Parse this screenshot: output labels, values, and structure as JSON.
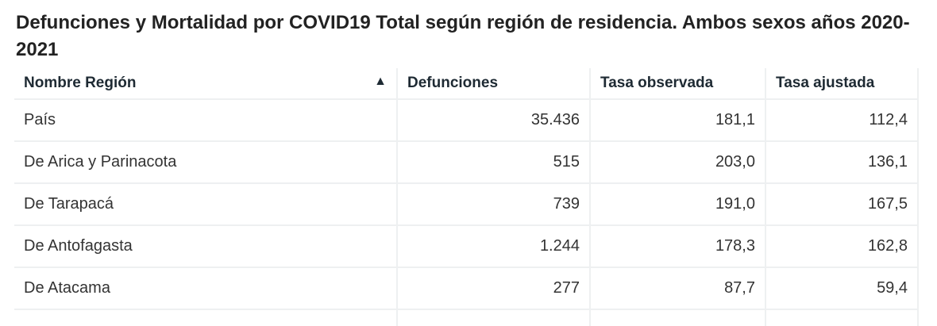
{
  "title": "Defunciones y Mortalidad por COVID19 Total según región de residencia. Ambos sexos años 2020-2021",
  "table": {
    "columns": [
      "Nombre Región",
      "Defunciones",
      "Tasa observada",
      "Tasa ajustada"
    ],
    "sort": {
      "column": "Nombre Región",
      "direction": "ascending",
      "icon": "triangle-up-icon"
    },
    "rows": [
      [
        "País",
        "35.436",
        "181,1",
        "112,4"
      ],
      [
        "De Arica y Parinacota",
        "515",
        "203,0",
        "136,1"
      ],
      [
        "De Tarapacá",
        "739",
        "191,0",
        "167,5"
      ],
      [
        "De Antofagasta",
        "1.244",
        "178,3",
        "162,8"
      ],
      [
        "De Atacama",
        "277",
        "87,7",
        "59,4"
      ]
    ]
  }
}
